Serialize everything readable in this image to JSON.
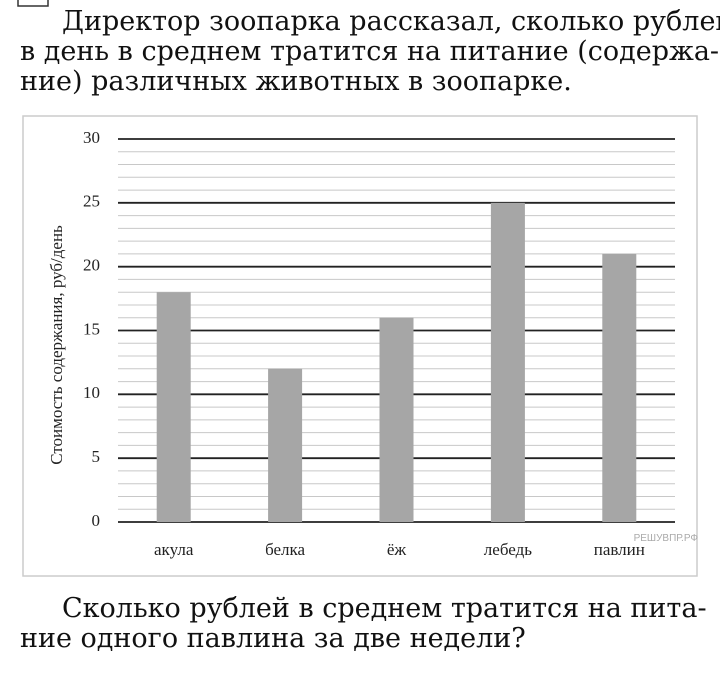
{
  "intro_lines": [
    "Директор зоопарка рассказал, сколько рублей",
    "в день в среднем тратится на питание (содержа-",
    "ние) различных животных в зоопарке."
  ],
  "chart_data": {
    "type": "bar",
    "ylabel": "Стоимость содержания, руб/день",
    "categories": [
      "акула",
      "белка",
      "ёж",
      "лебедь",
      "павлин"
    ],
    "values": [
      18,
      12,
      16,
      25,
      21
    ],
    "color": "#a6a6a6",
    "ylim": [
      0,
      30
    ],
    "yticks": [
      0,
      5,
      10,
      15,
      20,
      25,
      30
    ],
    "grid": true,
    "minor_grid_step": 1,
    "watermark": "РЕШУВПР.РФ"
  },
  "question_lines": [
    "Сколько рублей в среднем тратится на пита-",
    "ние одного павлина за две недели?"
  ]
}
